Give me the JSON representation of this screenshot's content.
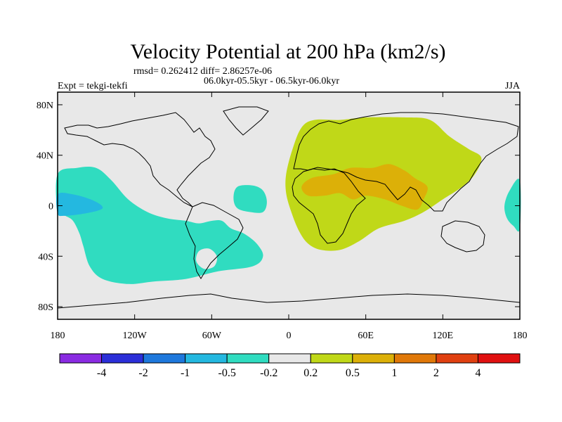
{
  "chart_data": {
    "type": "heatmap",
    "title": "Velocity Potential at 200 hPa (km2/s)",
    "stats_line": "rmsd= 0.262412 diff= 2.86257e-06",
    "period_line": "06.0kyr-05.5kyr - 06.5kyr-06.0kyr",
    "left_label": "Expt = tekgi-tekfi",
    "right_label": "JJA",
    "x_range": [
      -180,
      180
    ],
    "y_range": [
      -90,
      90
    ],
    "x_ticks": [
      {
        "value": -180,
        "label": "180"
      },
      {
        "value": -120,
        "label": "120W"
      },
      {
        "value": -60,
        "label": "60W"
      },
      {
        "value": 0,
        "label": "0"
      },
      {
        "value": 60,
        "label": "60E"
      },
      {
        "value": 120,
        "label": "120E"
      },
      {
        "value": 180,
        "label": "180"
      }
    ],
    "y_ticks": [
      {
        "value": 80,
        "label": "80N"
      },
      {
        "value": 40,
        "label": "40N"
      },
      {
        "value": 0,
        "label": "0"
      },
      {
        "value": -40,
        "label": "40S"
      },
      {
        "value": -80,
        "label": "80S"
      }
    ],
    "colorbar": {
      "colors": [
        "#8a2be2",
        "#2b2fd8",
        "#1e78dc",
        "#24b8e0",
        "#30dcc0",
        "#e8e8e8",
        "#c0d818",
        "#dcb008",
        "#e07808",
        "#e04010",
        "#e01010"
      ],
      "labels": [
        "-4",
        "-2",
        "-1",
        "-0.5",
        "-0.2",
        "0.2",
        "0.5",
        "1",
        "2",
        "4"
      ]
    },
    "regions": [
      {
        "name": "pacific-atlantic-negative",
        "level": -0.2,
        "color": "#30dcc0",
        "points": [
          [
            -180,
            25
          ],
          [
            -165,
            30
          ],
          [
            -150,
            30
          ],
          [
            -138,
            20
          ],
          [
            -125,
            5
          ],
          [
            -110,
            -5
          ],
          [
            -95,
            -10
          ],
          [
            -80,
            -12
          ],
          [
            -70,
            -14
          ],
          [
            -60,
            -12
          ],
          [
            -52,
            -12
          ],
          [
            -45,
            -18
          ],
          [
            -35,
            -22
          ],
          [
            -25,
            -30
          ],
          [
            -20,
            -40
          ],
          [
            -28,
            -48
          ],
          [
            -55,
            -52
          ],
          [
            -80,
            -58
          ],
          [
            -105,
            -60
          ],
          [
            -125,
            -62
          ],
          [
            -145,
            -58
          ],
          [
            -155,
            -48
          ],
          [
            -160,
            -32
          ],
          [
            -163,
            -22
          ],
          [
            -168,
            -12
          ],
          [
            -174,
            -8
          ],
          [
            -180,
            -5
          ]
        ]
      },
      {
        "name": "patagonia-hole",
        "level": 0,
        "color": "#e8e8e8",
        "points": [
          [
            -70,
            -36
          ],
          [
            -62,
            -34
          ],
          [
            -56,
            -40
          ],
          [
            -58,
            -48
          ],
          [
            -66,
            -50
          ],
          [
            -72,
            -44
          ]
        ]
      },
      {
        "name": "central-pacific-min",
        "level": -0.5,
        "color": "#24b8e0",
        "points": [
          [
            -180,
            9
          ],
          [
            -168,
            9
          ],
          [
            -152,
            4
          ],
          [
            -145,
            -2
          ],
          [
            -158,
            -6
          ],
          [
            -175,
            -8
          ],
          [
            -180,
            -6
          ]
        ]
      },
      {
        "name": "tropical-atlantic-negative",
        "level": -0.2,
        "color": "#30dcc0",
        "points": [
          [
            -40,
            15
          ],
          [
            -28,
            16
          ],
          [
            -20,
            12
          ],
          [
            -17,
            3
          ],
          [
            -20,
            -5
          ],
          [
            -30,
            -5
          ],
          [
            -40,
            -2
          ],
          [
            -43,
            6
          ]
        ]
      },
      {
        "name": "eastern-edge-negative",
        "level": -0.2,
        "color": "#30dcc0",
        "points": [
          [
            180,
            20
          ],
          [
            172,
            12
          ],
          [
            168,
            0
          ],
          [
            170,
            -10
          ],
          [
            175,
            -16
          ],
          [
            180,
            -18
          ]
        ]
      },
      {
        "name": "eurasia-africa-positive",
        "level": 0.2,
        "color": "#c0d818",
        "points": [
          [
            10,
            62
          ],
          [
            20,
            68
          ],
          [
            40,
            68
          ],
          [
            60,
            70
          ],
          [
            90,
            70
          ],
          [
            110,
            68
          ],
          [
            125,
            55
          ],
          [
            140,
            45
          ],
          [
            150,
            38
          ],
          [
            145,
            25
          ],
          [
            135,
            15
          ],
          [
            120,
            5
          ],
          [
            105,
            -5
          ],
          [
            90,
            -12
          ],
          [
            70,
            -18
          ],
          [
            55,
            -28
          ],
          [
            40,
            -35
          ],
          [
            25,
            -35
          ],
          [
            15,
            -30
          ],
          [
            8,
            -20
          ],
          [
            2,
            -5
          ],
          [
            -2,
            10
          ],
          [
            -2,
            25
          ],
          [
            3,
            45
          ]
        ]
      },
      {
        "name": "south-asia-max",
        "level": 0.5,
        "color": "#dcb008",
        "points": [
          [
            10,
            15
          ],
          [
            18,
            22
          ],
          [
            35,
            25
          ],
          [
            48,
            30
          ],
          [
            65,
            30
          ],
          [
            78,
            33
          ],
          [
            90,
            28
          ],
          [
            98,
            22
          ],
          [
            108,
            15
          ],
          [
            105,
            5
          ],
          [
            100,
            -3
          ],
          [
            88,
            0
          ],
          [
            75,
            5
          ],
          [
            60,
            8
          ],
          [
            50,
            5
          ],
          [
            40,
            10
          ],
          [
            28,
            8
          ],
          [
            15,
            8
          ]
        ]
      }
    ]
  }
}
